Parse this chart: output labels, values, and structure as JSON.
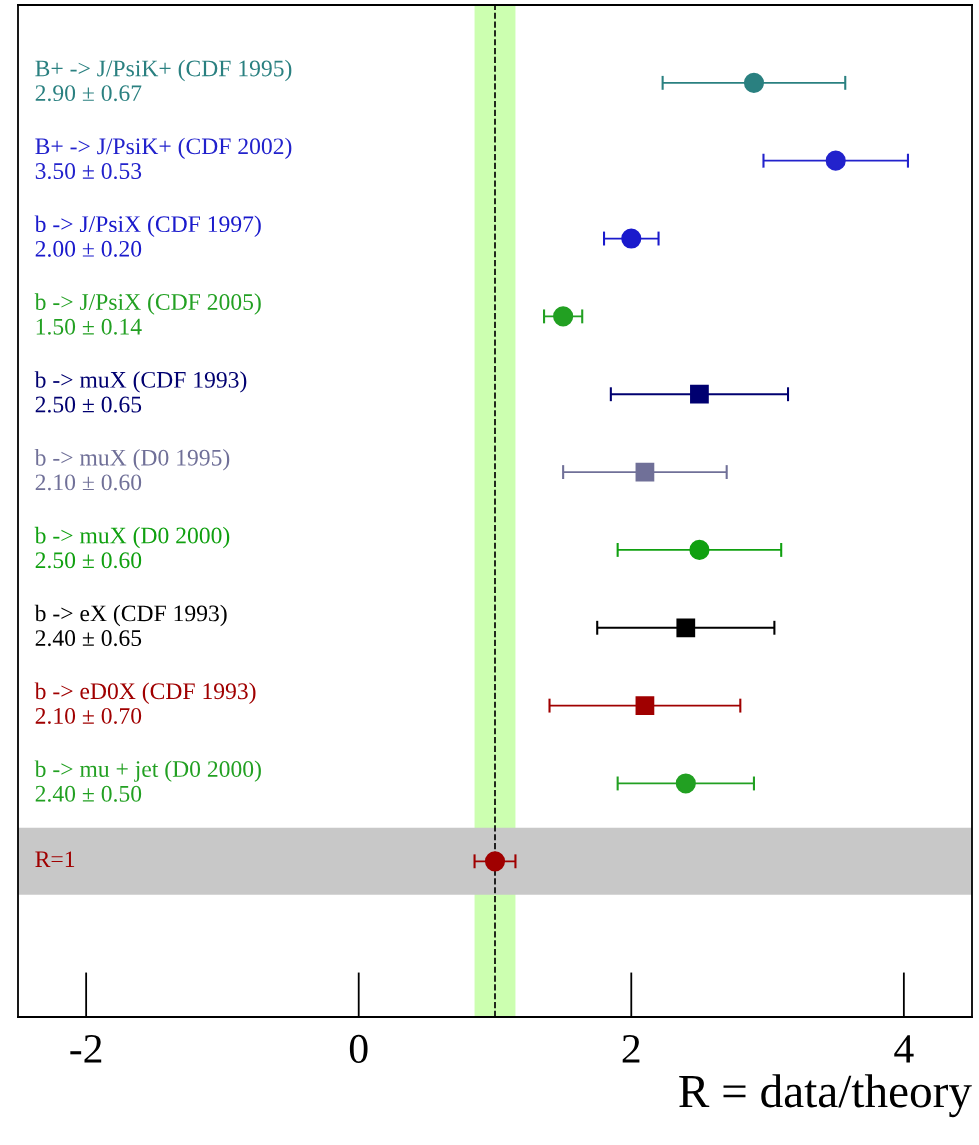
{
  "chart_data": {
    "type": "scatter",
    "orientation": "horizontal",
    "categories": [
      "B+ -> J/PsiK+ (CDF 1995)\n2.90 ± 0.67",
      "B+ -> J/PsiK+ (CDF 2002)\n3.50 ± 0.53",
      "b -> J/PsiX (CDF 1997)\n2.00 ± 0.20",
      "b -> J/PsiX (CDF 2005)\n1.50 ± 0.14",
      "b -> muX (CDF 1993)\n2.50 ± 0.65",
      "b -> muX (D0 1995)\n2.10 ± 0.60",
      "b -> muX (D0 2000)\n2.50 ± 0.60",
      "b -> eX (CDF 1993)\n2.40 ± 0.65",
      "b -> eD0X (CDF 1993)\n2.10 ± 0.70",
      "b -> mu + jet (D0 2000)\n2.40 ± 0.50",
      "R=1"
    ],
    "series": [
      {
        "marker": "circle",
        "values": [
          2.9,
          3.5,
          null,
          1.5,
          null,
          null,
          null,
          null,
          null,
          2.4,
          1.0
        ],
        "errors": [
          0.67,
          0.53,
          null,
          0.14,
          null,
          null,
          null,
          null,
          null,
          0.5,
          0.15
        ],
        "colors": [
          "#2a8080",
          "#2222cc",
          null,
          "#22a022",
          null,
          null,
          null,
          null,
          null,
          "#22a022",
          "#a00000"
        ]
      },
      {
        "marker": "circle",
        "values": [
          null,
          null,
          2.0,
          null,
          null,
          null,
          2.5,
          null,
          null,
          null,
          null
        ],
        "errors": [
          null,
          null,
          0.2,
          null,
          null,
          null,
          0.6,
          null,
          null,
          null,
          null
        ],
        "colors": [
          null,
          null,
          "#1a1acc",
          null,
          null,
          null,
          "#10a010",
          null,
          null,
          null,
          null
        ]
      },
      {
        "marker": "square",
        "values": [
          null,
          null,
          null,
          null,
          2.5,
          2.1,
          null,
          2.4,
          2.1,
          null,
          null
        ],
        "errors": [
          null,
          null,
          null,
          null,
          0.65,
          0.6,
          null,
          0.65,
          0.7,
          null,
          null
        ],
        "colors": [
          null,
          null,
          null,
          null,
          "#000070",
          "#707098",
          null,
          "#000000",
          "#a00000",
          null,
          null
        ]
      }
    ],
    "xlim": [
      -2.5,
      4.5
    ],
    "xticks": [
      -2,
      0,
      2,
      4
    ],
    "xlabel": "R = data/theory",
    "bands": [
      {
        "axis": "x",
        "from": 0.85,
        "to": 1.15,
        "color": "#ccffb0"
      },
      {
        "axis": "y",
        "from": "R=1",
        "to": "R=1",
        "color": "#c8c8c8"
      }
    ],
    "ref_lines": [
      {
        "axis": "x",
        "value": 1,
        "line_style": "dashed",
        "color": "#000000"
      }
    ],
    "grid": false,
    "legend": false
  }
}
